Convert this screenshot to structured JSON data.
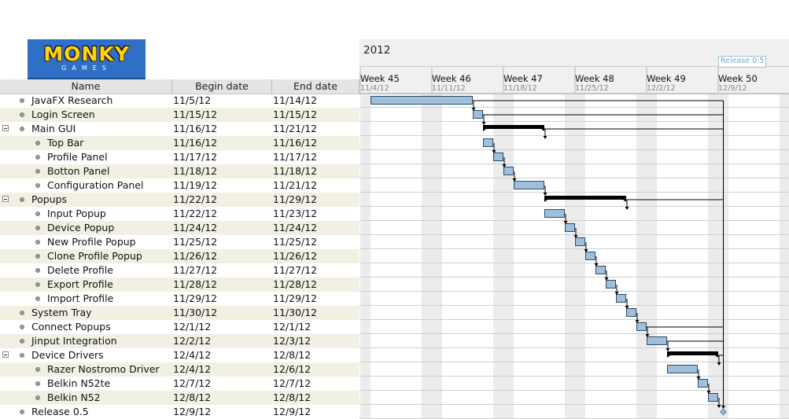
{
  "logo": {
    "title": "MONKY",
    "subtitle": "GAMES"
  },
  "table": {
    "columns": {
      "name": "Name",
      "begin": "Begin date",
      "end": "End date"
    },
    "rows": [
      {
        "name": "JavaFX Research",
        "begin": "11/5/12",
        "end": "11/14/12",
        "level": 0,
        "group": false
      },
      {
        "name": "Login Screen",
        "begin": "11/15/12",
        "end": "11/15/12",
        "level": 0,
        "group": false
      },
      {
        "name": "Main GUI",
        "begin": "11/16/12",
        "end": "11/21/12",
        "level": 0,
        "group": true
      },
      {
        "name": "Top Bar",
        "begin": "11/16/12",
        "end": "11/16/12",
        "level": 1,
        "group": false
      },
      {
        "name": "Profile Panel",
        "begin": "11/17/12",
        "end": "11/17/12",
        "level": 1,
        "group": false
      },
      {
        "name": "Botton Panel",
        "begin": "11/18/12",
        "end": "11/18/12",
        "level": 1,
        "group": false
      },
      {
        "name": "Configuration Panel",
        "begin": "11/19/12",
        "end": "11/21/12",
        "level": 1,
        "group": false
      },
      {
        "name": "Popups",
        "begin": "11/22/12",
        "end": "11/29/12",
        "level": 0,
        "group": true
      },
      {
        "name": "Input Popup",
        "begin": "11/22/12",
        "end": "11/23/12",
        "level": 1,
        "group": false
      },
      {
        "name": "Device Popup",
        "begin": "11/24/12",
        "end": "11/24/12",
        "level": 1,
        "group": false
      },
      {
        "name": "New Profile Popup",
        "begin": "11/25/12",
        "end": "11/25/12",
        "level": 1,
        "group": false
      },
      {
        "name": "Clone Profile Popup",
        "begin": "11/26/12",
        "end": "11/26/12",
        "level": 1,
        "group": false
      },
      {
        "name": "Delete Profile",
        "begin": "11/27/12",
        "end": "11/27/12",
        "level": 1,
        "group": false
      },
      {
        "name": "Export Profile",
        "begin": "11/28/12",
        "end": "11/28/12",
        "level": 1,
        "group": false
      },
      {
        "name": "Import Profile",
        "begin": "11/29/12",
        "end": "11/29/12",
        "level": 1,
        "group": false
      },
      {
        "name": "System Tray",
        "begin": "11/30/12",
        "end": "11/30/12",
        "level": 0,
        "group": false
      },
      {
        "name": "Connect Popups",
        "begin": "12/1/12",
        "end": "12/1/12",
        "level": 0,
        "group": false
      },
      {
        "name": "Jinput Integration",
        "begin": "12/2/12",
        "end": "12/3/12",
        "level": 0,
        "group": false
      },
      {
        "name": "Device Drivers",
        "begin": "12/4/12",
        "end": "12/8/12",
        "level": 0,
        "group": true
      },
      {
        "name": "Razer Nostromo Driver",
        "begin": "12/4/12",
        "end": "12/6/12",
        "level": 1,
        "group": false
      },
      {
        "name": "Belkin N52te",
        "begin": "12/7/12",
        "end": "12/7/12",
        "level": 1,
        "group": false
      },
      {
        "name": "Belkin N52",
        "begin": "12/8/12",
        "end": "12/8/12",
        "level": 1,
        "group": false
      },
      {
        "name": "Release 0.5",
        "begin": "12/9/12",
        "end": "12/9/12",
        "level": 0,
        "group": false
      }
    ]
  },
  "chart": {
    "year": "2012",
    "release_marker": "Release 0.5",
    "weeks": [
      {
        "label": "Week 45",
        "date": "11/4/12"
      },
      {
        "label": "Week 46",
        "date": "11/11/12"
      },
      {
        "label": "Week 47",
        "date": "11/18/12"
      },
      {
        "label": "Week 48",
        "date": "11/25/12"
      },
      {
        "label": "Week 49",
        "date": "12/2/12"
      },
      {
        "label": "Week 50",
        "date": "12/9/12"
      }
    ],
    "colors": {
      "task": "#9fbfda",
      "task_border": "#2c4a66",
      "summary": "#000000",
      "milestone": "#8fb6cf",
      "weekend": "#ececec",
      "row_line": "#cfcfcf"
    }
  }
}
